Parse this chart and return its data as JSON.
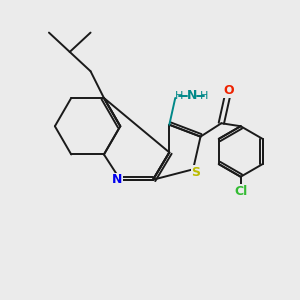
{
  "background_color": "#ebebeb",
  "bond_color": "#1a1a1a",
  "N_color": "#0000ee",
  "S_color": "#bbbb00",
  "O_color": "#ee2200",
  "Cl_color": "#33bb33",
  "NH_color": "#008888",
  "figsize": [
    3.0,
    3.0
  ],
  "dpi": 100,
  "xlim": [
    0,
    10
  ],
  "ylim": [
    0,
    10
  ]
}
